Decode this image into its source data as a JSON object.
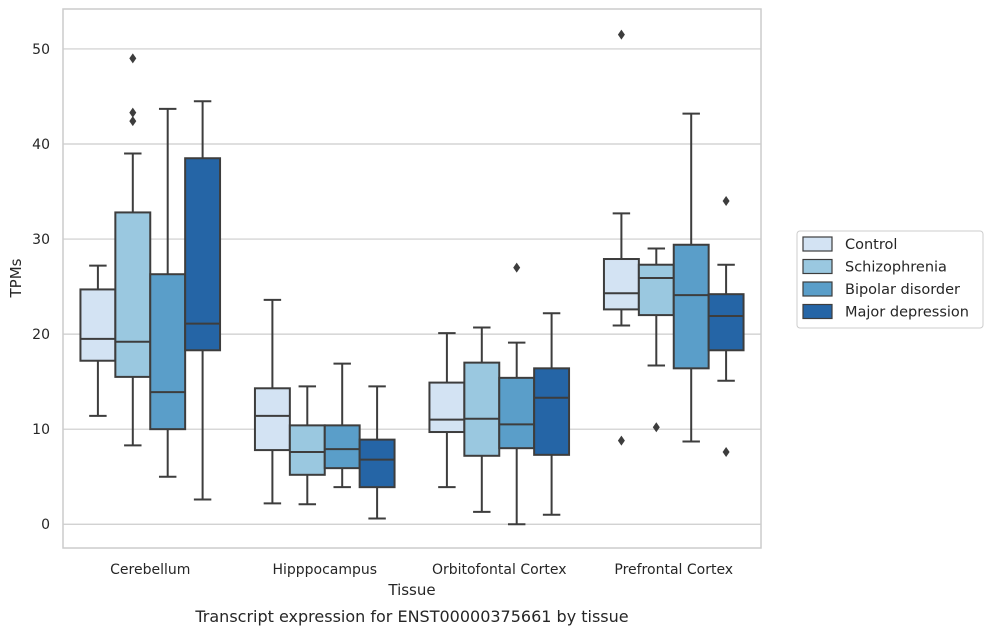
{
  "caption": "Transcript expression for ENST00000375661 by tissue",
  "chart_data": {
    "type": "box",
    "xlabel": "Tissue",
    "ylabel": "TPMs",
    "ylim": [
      -2.5,
      54.2
    ],
    "yticks": [
      0,
      10,
      20,
      30,
      40,
      50
    ],
    "grid": "horizontal",
    "legend_position": "right",
    "categories": [
      "Cerebellum",
      "Hipppocampus",
      "Orbitofontal Cortex",
      "Prefrontal Cortex"
    ],
    "series": [
      {
        "name": "Control",
        "color": "#d3e3f3",
        "boxes": [
          {
            "whisker_low": 11.4,
            "q1": 17.2,
            "median": 19.5,
            "q3": 24.7,
            "whisker_high": 27.2,
            "outliers": []
          },
          {
            "whisker_low": 2.2,
            "q1": 7.8,
            "median": 11.4,
            "q3": 14.3,
            "whisker_high": 23.6,
            "outliers": []
          },
          {
            "whisker_low": 3.9,
            "q1": 9.7,
            "median": 11.0,
            "q3": 14.9,
            "whisker_high": 20.1,
            "outliers": []
          },
          {
            "whisker_low": 20.9,
            "q1": 22.6,
            "median": 24.3,
            "q3": 27.9,
            "whisker_high": 32.7,
            "outliers": [
              8.8,
              51.5
            ]
          }
        ]
      },
      {
        "name": "Schizophrenia",
        "color": "#9ac8e0",
        "boxes": [
          {
            "whisker_low": 8.3,
            "q1": 15.5,
            "median": 19.2,
            "q3": 32.8,
            "whisker_high": 39.0,
            "outliers": [
              42.4,
              43.3,
              49.0
            ]
          },
          {
            "whisker_low": 2.1,
            "q1": 5.2,
            "median": 7.6,
            "q3": 10.4,
            "whisker_high": 14.5,
            "outliers": []
          },
          {
            "whisker_low": 1.3,
            "q1": 7.2,
            "median": 11.1,
            "q3": 17.0,
            "whisker_high": 20.7,
            "outliers": []
          },
          {
            "whisker_low": 16.7,
            "q1": 22.0,
            "median": 25.9,
            "q3": 27.3,
            "whisker_high": 29.0,
            "outliers": [
              10.2
            ]
          }
        ]
      },
      {
        "name": "Bipolar disorder",
        "color": "#5a9ec9",
        "boxes": [
          {
            "whisker_low": 5.0,
            "q1": 10.0,
            "median": 13.9,
            "q3": 26.3,
            "whisker_high": 43.7,
            "outliers": []
          },
          {
            "whisker_low": 3.9,
            "q1": 5.9,
            "median": 7.9,
            "q3": 10.4,
            "whisker_high": 16.9,
            "outliers": []
          },
          {
            "whisker_low": 0.0,
            "q1": 8.0,
            "median": 10.5,
            "q3": 15.4,
            "whisker_high": 19.1,
            "outliers": [
              27.0
            ]
          },
          {
            "whisker_low": 8.7,
            "q1": 16.4,
            "median": 24.1,
            "q3": 29.4,
            "whisker_high": 43.2,
            "outliers": []
          }
        ]
      },
      {
        "name": "Major depression",
        "color": "#2565a6",
        "boxes": [
          {
            "whisker_low": 2.6,
            "q1": 18.3,
            "median": 21.1,
            "q3": 38.5,
            "whisker_high": 44.5,
            "outliers": []
          },
          {
            "whisker_low": 0.6,
            "q1": 3.9,
            "median": 6.8,
            "q3": 8.9,
            "whisker_high": 14.5,
            "outliers": []
          },
          {
            "whisker_low": 1.0,
            "q1": 7.3,
            "median": 13.3,
            "q3": 16.4,
            "whisker_high": 22.2,
            "outliers": []
          },
          {
            "whisker_low": 15.1,
            "q1": 18.3,
            "median": 21.9,
            "q3": 24.2,
            "whisker_high": 27.3,
            "outliers": [
              7.6,
              34.0
            ]
          }
        ]
      }
    ]
  }
}
